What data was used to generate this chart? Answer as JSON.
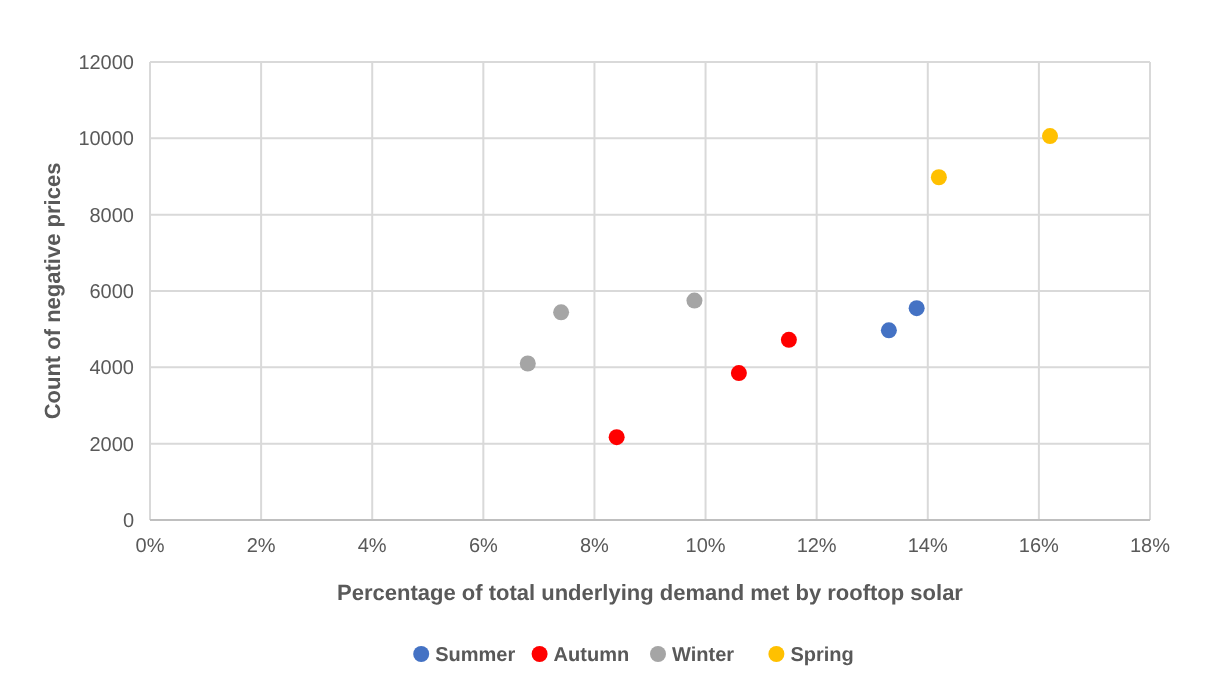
{
  "chart_data": {
    "type": "scatter",
    "xlabel": "Percentage of total underlying demand met by rooftop solar",
    "ylabel": "Count of negative prices",
    "xlim": [
      0,
      18
    ],
    "xticks": [
      {
        "value": 0,
        "label": "0%"
      },
      {
        "value": 2,
        "label": "2%"
      },
      {
        "value": 4,
        "label": "4%"
      },
      {
        "value": 6,
        "label": "6%"
      },
      {
        "value": 8,
        "label": "8%"
      },
      {
        "value": 10,
        "label": "10%"
      },
      {
        "value": 12,
        "label": "12%"
      },
      {
        "value": 14,
        "label": "14%"
      },
      {
        "value": 16,
        "label": "16%"
      },
      {
        "value": 18,
        "label": "18%"
      }
    ],
    "ylim": [
      0,
      12000
    ],
    "yticks": [
      0,
      2000,
      4000,
      6000,
      8000,
      10000,
      12000
    ],
    "grid": true,
    "legend": "bottom",
    "marker": "circle",
    "series": [
      {
        "name": "Summer",
        "color": "#4472c4",
        "x": [
          13.3,
          13.8
        ],
        "values": [
          4970,
          5550
        ]
      },
      {
        "name": "Autumn",
        "color": "#ff0000",
        "x": [
          8.4,
          10.6,
          11.5
        ],
        "values": [
          2170,
          3850,
          4720
        ]
      },
      {
        "name": "Winter",
        "color": "#a5a5a5",
        "x": [
          6.8,
          7.4,
          9.8
        ],
        "values": [
          4100,
          5440,
          5750
        ]
      },
      {
        "name": "Spring",
        "color": "#ffc000",
        "x": [
          14.2,
          16.2
        ],
        "values": [
          8980,
          10060
        ]
      }
    ]
  }
}
